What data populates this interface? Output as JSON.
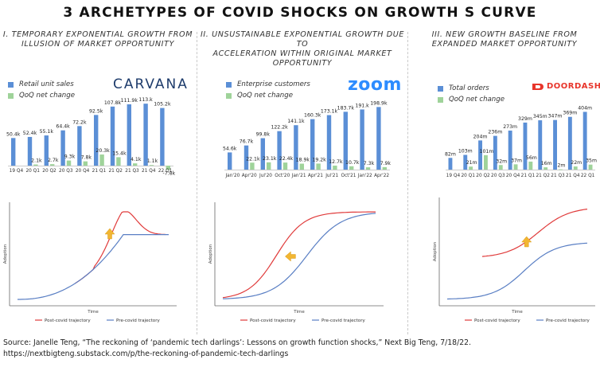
{
  "title": "3 ARCHETYPES OF COVID SHOCKS ON GROWTH S CURVE",
  "source": {
    "line1": "Source: Janelle Teng, “The reckoning of ‘pandemic tech darlings’: Lessons on growth function shocks,” Next Big Teng, 7/18/22.",
    "line2": "https://nextbigteng.substack.com/p/the-reckoning-of-pandemic-tech-darlings"
  },
  "colors": {
    "bar": "#5b8fd6",
    "qoq": "#9fd39a",
    "post": "#e03b3b",
    "pre": "#5a7fc4",
    "arrow": "#f2b632"
  },
  "panels": [
    {
      "title_line1": "I. TEMPORARY EXPONENTIAL GROWTH FROM",
      "title_line2": "ILLUSION OF MARKET OPPORTUNITY",
      "logo": "CARVANA",
      "legend_bar": "Retail unit sales",
      "legend_qoq": "QoQ net change",
      "curve_type": "temporary",
      "ylabel": "Adoption",
      "xlabel": "Time",
      "post_label": "Post-covid trajectory",
      "pre_label": "Pre-covid trajectory"
    },
    {
      "title_line1": "II. UNSUSTAINABLE EXPONENTIAL GROWTH DUE TO",
      "title_line2": "ACCELERATION WITHIN ORIGINAL MARKET OPPORTUNITY",
      "logo": "zoom",
      "legend_bar": "Enterprise customers",
      "legend_qoq": "QoQ net change",
      "curve_type": "acceleration",
      "ylabel": "Adoption",
      "xlabel": "Time",
      "post_label": "Post-covid trajectory",
      "pre_label": "Pre-covid trajectory"
    },
    {
      "title_line1": "III. NEW GROWTH BASELINE FROM",
      "title_line2": "EXPANDED MARKET OPPORTUNITY",
      "logo": "DOORDASH",
      "legend_bar": "Total orders",
      "legend_qoq": "QoQ net change",
      "curve_type": "baseline",
      "ylabel": "Adoption",
      "xlabel": "Time",
      "post_label": "Post-covid trajectory",
      "pre_label": "Pre-covid trajectory"
    }
  ],
  "chart_data": [
    {
      "type": "bar",
      "categories": [
        "19 Q4",
        "20 Q1",
        "20 Q2",
        "20 Q3",
        "20 Q4",
        "21 Q1",
        "21 Q2",
        "21 Q3",
        "21 Q4",
        "22 Q1"
      ],
      "series": [
        {
          "name": "Retail unit sales",
          "values": [
            50.4,
            52.4,
            55.1,
            64.4,
            72.2,
            92.5,
            107.8,
            111.9,
            113.1,
            105.2
          ],
          "labels": [
            "50.4k",
            "52.4k",
            "55.1k",
            "64.4k",
            "72.2k",
            "92.5k",
            "107.8k",
            "111.9k",
            "113.k",
            "105.2k"
          ]
        },
        {
          "name": "QoQ net change",
          "values": [
            null,
            2.1,
            2.7,
            9.3,
            7.8,
            20.3,
            15.4,
            4.1,
            1.1,
            -7.8
          ],
          "labels": [
            "",
            "2.1k",
            "2.7k",
            "9.3k",
            "7.8k",
            "20.3k",
            "15.4k",
            "4.1k",
            "1.1k",
            "-7.8k"
          ]
        }
      ],
      "ylim": [
        -10,
        125
      ]
    },
    {
      "type": "bar",
      "categories": [
        "Jan'20",
        "Apr'20",
        "Jul'20",
        "Oct'20",
        "Jan'21",
        "Apr'21",
        "Jul'21",
        "Oct'21",
        "Jan'22",
        "Apr'22"
      ],
      "series": [
        {
          "name": "Enterprise customers",
          "values": [
            54.6,
            76.7,
            99.8,
            122.2,
            141.1,
            160.3,
            173.1,
            183.7,
            191.1,
            198.9
          ],
          "labels": [
            "54.6k",
            "76.7k",
            "99.8k",
            "122.2k",
            "141.1k",
            "160.3k",
            "173.1k",
            "183.7k",
            "191.k",
            "198.9k"
          ]
        },
        {
          "name": "QoQ net change",
          "values": [
            null,
            22.1,
            23.1,
            22.4,
            18.9,
            19.2,
            12.7,
            10.7,
            7.3,
            7.9
          ],
          "labels": [
            "",
            "22.1k",
            "23.1k",
            "22.4k",
            "18.9k",
            "19.2k",
            "12.7k",
            "10.7k",
            "7.3k",
            "7.9k"
          ]
        }
      ],
      "ylim": [
        0,
        215
      ]
    },
    {
      "type": "bar",
      "categories": [
        "19 Q4",
        "20 Q1",
        "20 Q2",
        "20 Q3",
        "20 Q4",
        "21 Q1",
        "21 Q2",
        "21 Q3",
        "21 Q4",
        "22 Q1"
      ],
      "series": [
        {
          "name": "Total orders",
          "values": [
            82,
            103,
            204,
            236,
            273,
            329,
            345,
            347,
            369,
            404
          ],
          "labels": [
            "82m",
            "103m",
            "204m",
            "236m",
            "273m",
            "329m",
            "345m",
            "347m",
            "369m",
            "404m"
          ]
        },
        {
          "name": "QoQ net change",
          "values": [
            null,
            21,
            101,
            32,
            37,
            56,
            16,
            2,
            22,
            35
          ],
          "labels": [
            "",
            "21m",
            "101m",
            "32m",
            "37m",
            "56m",
            "16m",
            "2m",
            "22m",
            "35m"
          ]
        }
      ],
      "ylim": [
        0,
        440
      ]
    }
  ]
}
